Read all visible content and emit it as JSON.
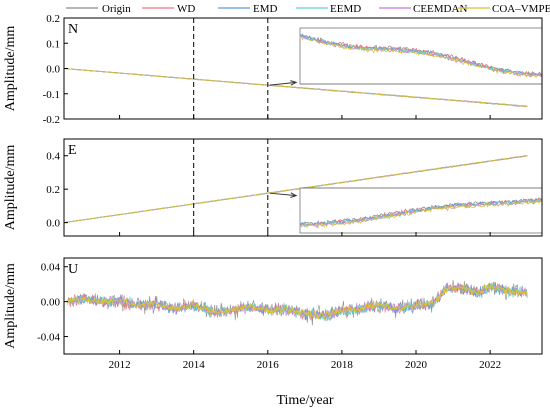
{
  "chart_data": [
    {
      "type": "line",
      "panel_label": "N",
      "ylabel": "Amplitude/mm",
      "xlim": [
        2010.5,
        2023.4
      ],
      "ylim": [
        -0.2,
        0.2
      ],
      "yticks": [
        "0.2",
        "0.1",
        "0.0",
        "-0.1",
        "-0.2"
      ],
      "ytick_values": [
        0.2,
        0.1,
        0.0,
        -0.1,
        -0.2
      ],
      "markers": [
        2014,
        2016
      ],
      "trend": {
        "start_x": 2010.5,
        "start_y": 0.0,
        "end_x": 2023.0,
        "end_y": -0.15
      },
      "inset": {
        "from_x": 2016.0,
        "to_x": 2023.3,
        "y_range": [
          -0.08,
          -0.06
        ],
        "shape": "decreasing wiggle"
      }
    },
    {
      "type": "line",
      "panel_label": "E",
      "ylabel": "Amplitude/mm",
      "xlim": [
        2010.5,
        2023.4
      ],
      "ylim": [
        -0.08,
        0.5
      ],
      "yticks": [
        "0.4",
        "0.2",
        "0.0"
      ],
      "ytick_values": [
        0.4,
        0.2,
        0.0
      ],
      "markers": [
        2014,
        2016
      ],
      "trend": {
        "start_x": 2010.5,
        "start_y": 0.0,
        "end_x": 2023.0,
        "end_y": 0.4
      },
      "inset": {
        "from_x": 2016.0,
        "to_x": 2023.3,
        "y_range": [
          0.17,
          0.19
        ],
        "shape": "increasing wiggle"
      }
    },
    {
      "type": "line",
      "panel_label": "U",
      "ylabel": "Amplitude/mm",
      "xlabel": "Time/year",
      "xlim": [
        2010.5,
        2023.4
      ],
      "ylim": [
        -0.06,
        0.05
      ],
      "yticks": [
        "0.04",
        "0.00",
        "-0.04"
      ],
      "ytick_values": [
        0.04,
        0.0,
        -0.04
      ],
      "xticks": [
        "2012",
        "2014",
        "2016",
        "2018",
        "2020",
        "2022"
      ],
      "xtick_values": [
        2012,
        2014,
        2016,
        2018,
        2020,
        2022
      ],
      "profile": [
        [
          2010.6,
          0.0
        ],
        [
          2011.0,
          0.003
        ],
        [
          2011.5,
          0.0
        ],
        [
          2012.0,
          0.001
        ],
        [
          2012.5,
          -0.004
        ],
        [
          2013.0,
          -0.003
        ],
        [
          2013.5,
          -0.008
        ],
        [
          2014.0,
          -0.004
        ],
        [
          2014.5,
          -0.012
        ],
        [
          2015.0,
          -0.01
        ],
        [
          2015.5,
          -0.006
        ],
        [
          2016.0,
          -0.01
        ],
        [
          2016.5,
          -0.008
        ],
        [
          2017.0,
          -0.014
        ],
        [
          2017.5,
          -0.016
        ],
        [
          2018.0,
          -0.01
        ],
        [
          2018.5,
          -0.008
        ],
        [
          2019.0,
          -0.004
        ],
        [
          2019.5,
          -0.008
        ],
        [
          2020.0,
          -0.004
        ],
        [
          2020.5,
          -0.002
        ],
        [
          2020.8,
          0.015
        ],
        [
          2021.2,
          0.016
        ],
        [
          2021.7,
          0.01
        ],
        [
          2022.0,
          0.018
        ],
        [
          2022.5,
          0.012
        ],
        [
          2023.0,
          0.01
        ]
      ]
    }
  ],
  "legend": [
    {
      "label": "Origin",
      "color": "#8a8a8a"
    },
    {
      "label": "WD",
      "color": "#f4737a"
    },
    {
      "label": "EMD",
      "color": "#5a9be0"
    },
    {
      "label": "EEMD",
      "color": "#5ed6c8"
    },
    {
      "label": "CEEMDAN",
      "color": "#c87ad8"
    },
    {
      "label": "COA–VMPE–WD",
      "color": "#d8c430"
    }
  ]
}
